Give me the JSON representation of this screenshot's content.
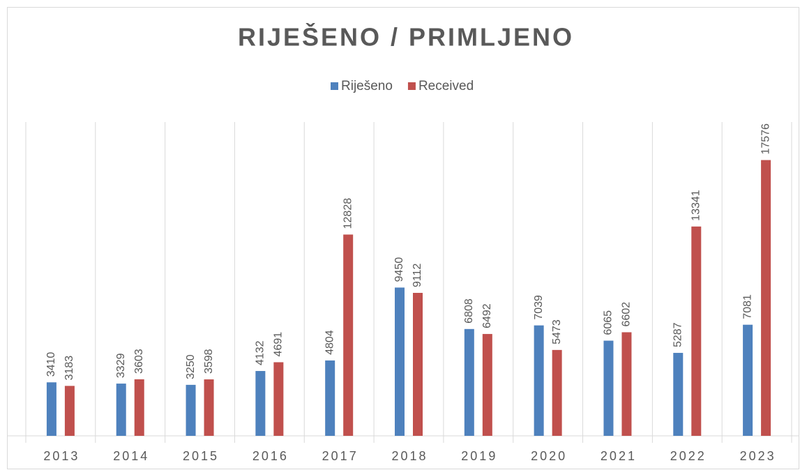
{
  "chart_data": {
    "type": "bar",
    "title": "RIJEŠENO / PRIMLJENO",
    "categories": [
      "2013",
      "2014",
      "2015",
      "2016",
      "2017",
      "2018",
      "2019",
      "2020",
      "2021",
      "2022",
      "2023"
    ],
    "series": [
      {
        "name": "Riješeno",
        "color": "#4e81bd",
        "values": [
          3410,
          3329,
          3250,
          4132,
          4804,
          9450,
          6808,
          7039,
          6065,
          5287,
          7081
        ]
      },
      {
        "name": "Received",
        "color": "#c0504d",
        "values": [
          3183,
          3603,
          3598,
          4691,
          12828,
          9112,
          6492,
          5473,
          6602,
          13341,
          17576
        ]
      }
    ],
    "ylim": [
      0,
      20000
    ],
    "legend": "top"
  }
}
